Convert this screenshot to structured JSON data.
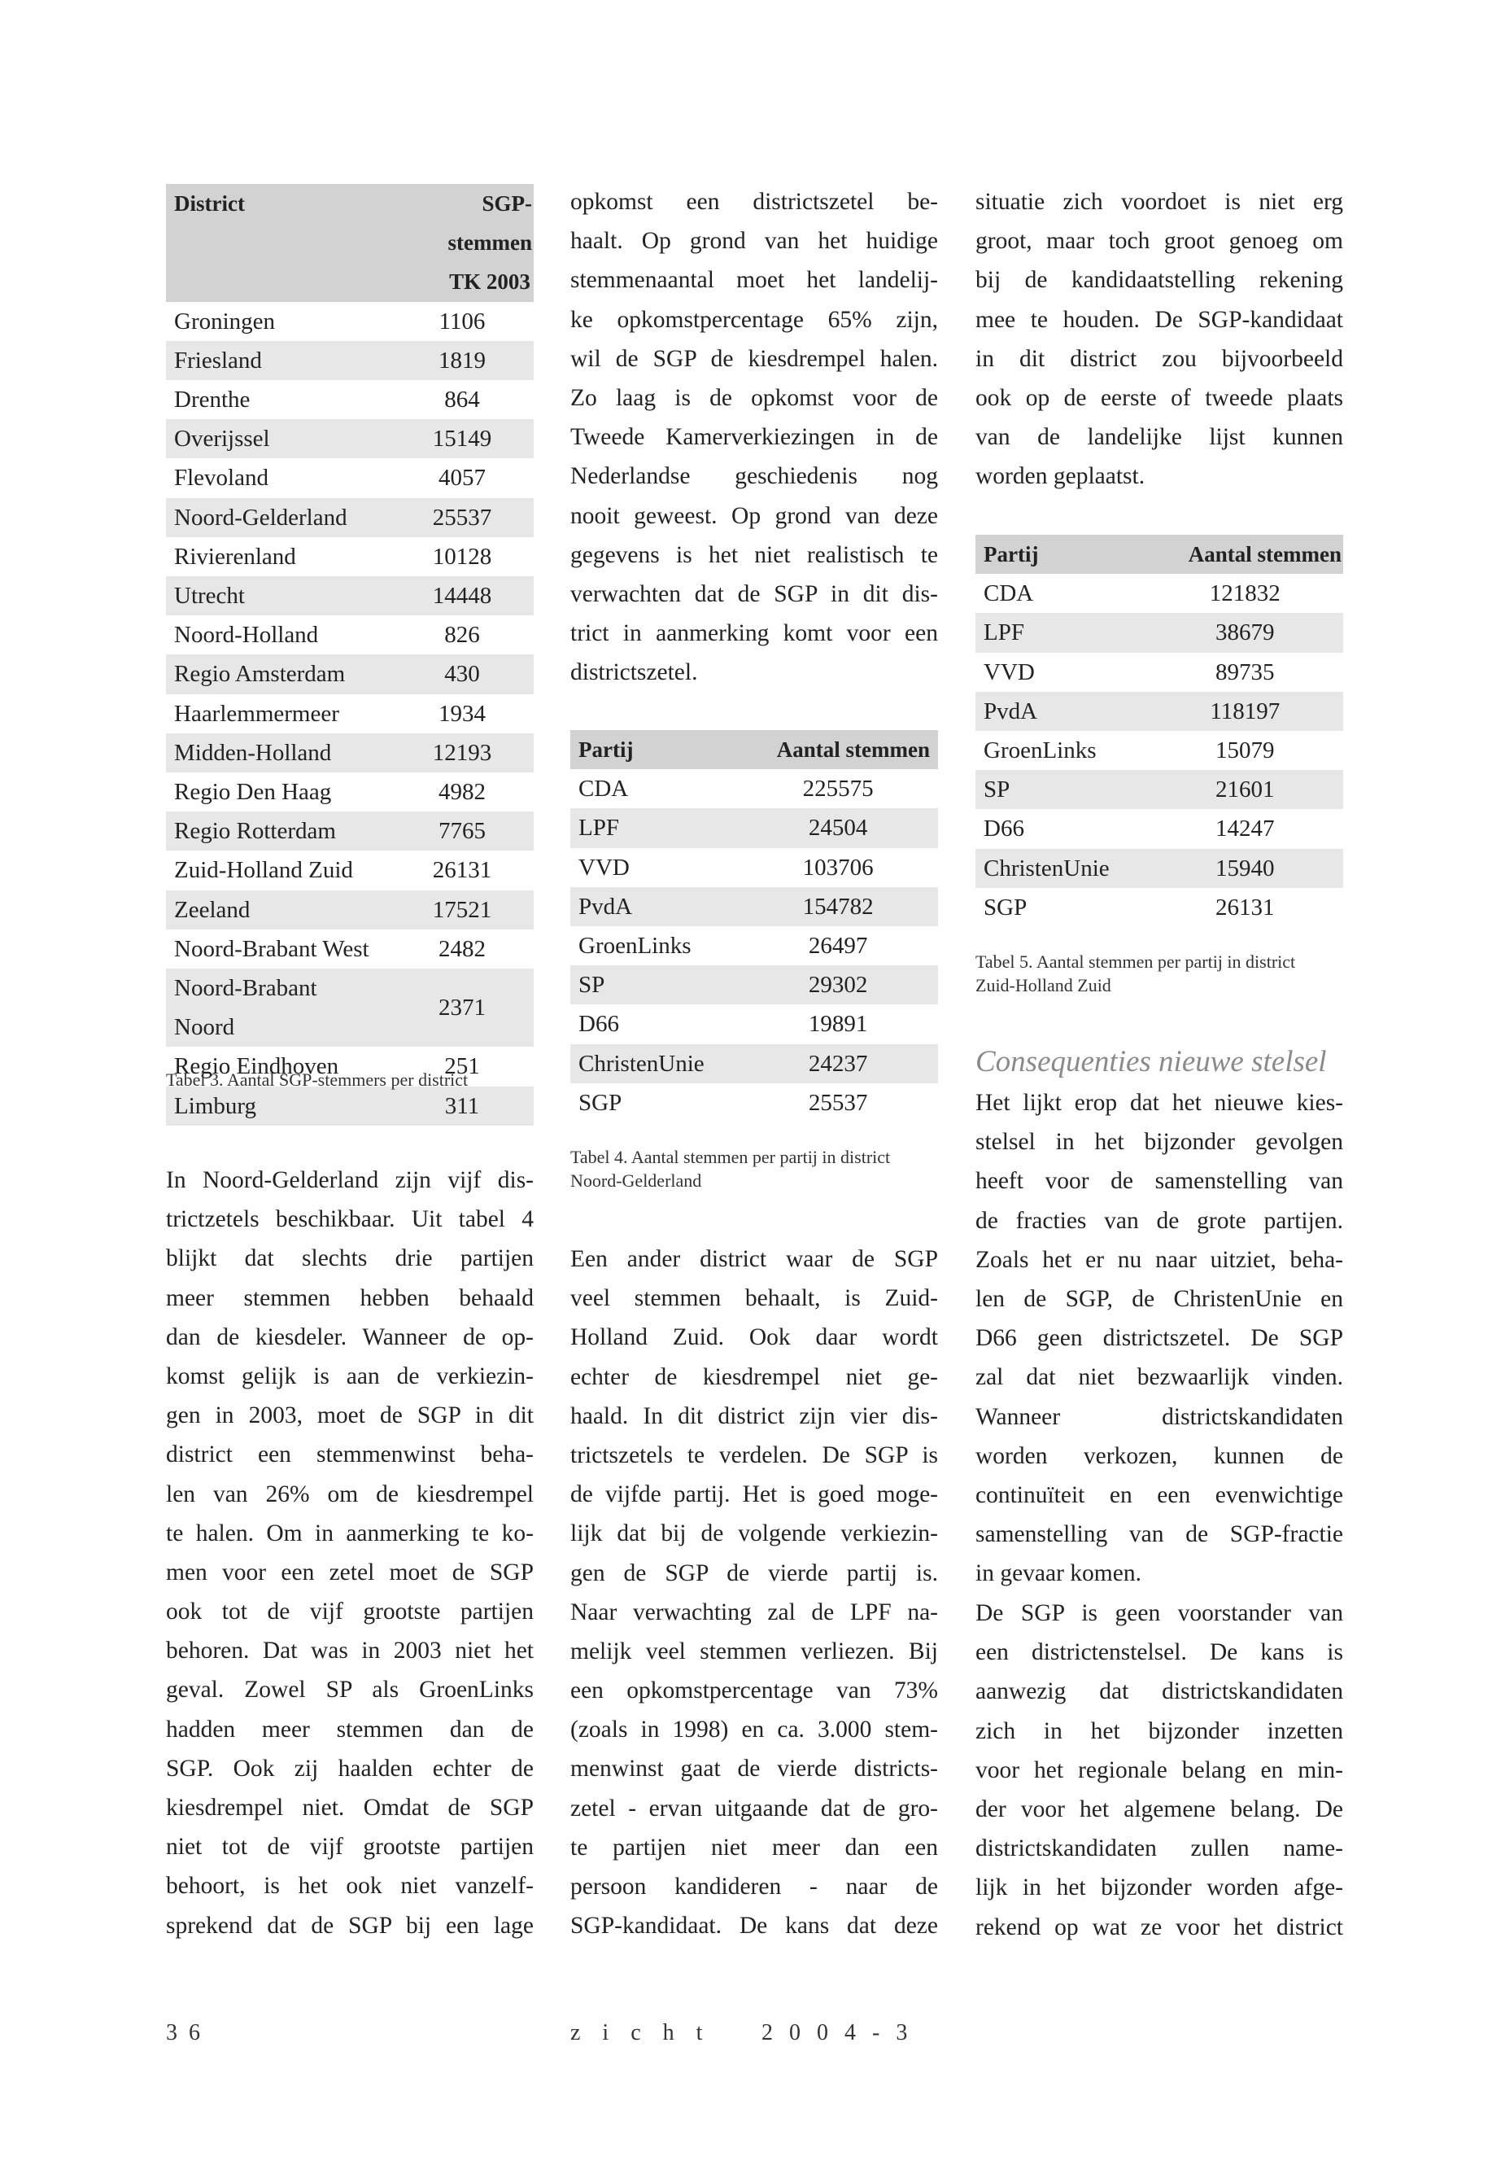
{
  "table3": {
    "headers": {
      "district": "District",
      "votes_line1": "SGP-stemmen",
      "votes_line2": "TK 2003"
    },
    "rows": [
      [
        "Groningen",
        "1106"
      ],
      [
        "Friesland",
        "1819"
      ],
      [
        "Drenthe",
        "864"
      ],
      [
        "Overijssel",
        "15149"
      ],
      [
        "Flevoland",
        "4057"
      ],
      [
        "Noord-Gelderland",
        "25537"
      ],
      [
        "Rivierenland",
        "10128"
      ],
      [
        "Utrecht",
        "14448"
      ],
      [
        "Noord-Holland",
        "826"
      ],
      [
        "Regio Amsterdam",
        "430"
      ],
      [
        "Haarlemmermeer",
        "1934"
      ],
      [
        "Midden-Holland",
        "12193"
      ],
      [
        "Regio Den Haag",
        "4982"
      ],
      [
        "Regio Rotterdam",
        "7765"
      ],
      [
        "Zuid-Holland Zuid",
        "26131"
      ],
      [
        "Zeeland",
        "17521"
      ],
      [
        "Noord-Brabant West",
        "2482"
      ],
      [
        "Noord-Brabant Noord",
        "2371"
      ],
      [
        "Regio Eindhoven",
        "251"
      ],
      [
        "Limburg",
        "311"
      ]
    ],
    "caption": "Tabel 3. Aantal SGP-stemmers per district"
  },
  "table4": {
    "headers": {
      "party": "Partij",
      "votes": "Aantal stemmen"
    },
    "rows": [
      [
        "CDA",
        "225575"
      ],
      [
        "LPF",
        "24504"
      ],
      [
        "VVD",
        "103706"
      ],
      [
        "PvdA",
        "154782"
      ],
      [
        "GroenLinks",
        "26497"
      ],
      [
        "SP",
        "29302"
      ],
      [
        "D66",
        "19891"
      ],
      [
        "ChristenUnie",
        "24237"
      ],
      [
        "SGP",
        "25537"
      ]
    ],
    "caption": [
      "Tabel 4. Aantal stemmen per partij in district",
      "Noord-Gelderland"
    ]
  },
  "table5": {
    "headers": {
      "party": "Partij",
      "votes": "Aantal stemmen"
    },
    "rows": [
      [
        "CDA",
        "121832"
      ],
      [
        "LPF",
        "38679"
      ],
      [
        "VVD",
        "89735"
      ],
      [
        "PvdA",
        "118197"
      ],
      [
        "GroenLinks",
        "15079"
      ],
      [
        "SP",
        "21601"
      ],
      [
        "D66",
        "14247"
      ],
      [
        "ChristenUnie",
        "15940"
      ],
      [
        "SGP",
        "26131"
      ]
    ],
    "caption": [
      "Tabel 5. Aantal stemmen per partij in district",
      "Zuid-Holland Zuid"
    ]
  },
  "col1_para": [
    "In Noord-Gelderland zijn vijf dis-",
    "trictzetels beschikbaar. Uit tabel 4",
    "blijkt dat slechts drie partijen",
    "meer stemmen hebben behaald",
    "dan de kiesdeler. Wanneer de op-",
    "komst gelijk is aan de verkiezin-",
    "gen in 2003, moet de SGP in dit",
    "district een stemmenwinst beha-",
    "len van 26% om de kiesdrempel",
    "te halen. Om in aanmerking te ko-",
    "men voor een zetel moet de SGP",
    "ook tot de vijf grootste partijen",
    "behoren. Dat was in 2003 niet het",
    "geval. Zowel SP als GroenLinks",
    "hadden meer stemmen dan de",
    "SGP. Ook zij haalden echter de",
    "kiesdrempel niet. Omdat de SGP",
    "niet tot de vijf grootste partijen",
    "behoort, is het ook niet vanzelf-",
    "sprekend dat de SGP bij een lage"
  ],
  "col2_para1": [
    "opkomst een districtszetel be-",
    "haalt. Op grond van het huidige",
    "stemmenaantal moet het landelij-",
    "ke opkomstpercentage 65% zijn,",
    "wil de SGP de kiesdrempel halen.",
    "Zo laag is de opkomst voor de",
    "Tweede Kamerverkiezingen in de",
    "Nederlandse geschiedenis nog",
    "nooit geweest. Op grond van deze",
    "gegevens is het niet realistisch te",
    "verwachten dat de SGP in dit dis-",
    "trict in aanmerking komt voor een",
    "districtszetel."
  ],
  "col2_para2": [
    "Een ander district waar de SGP",
    "veel stemmen behaalt, is Zuid-",
    "Holland Zuid. Ook daar wordt",
    "echter de kiesdrempel niet ge-",
    "haald. In dit district zijn vier dis-",
    "trictszetels te verdelen. De SGP is",
    "de vijfde partij. Het is goed moge-",
    "lijk dat bij de volgende verkiezin-",
    "gen de SGP de vierde partij is.",
    "Naar verwachting zal de LPF na-",
    "melijk veel stemmen verliezen. Bij",
    "een opkomstpercentage van 73%",
    "(zoals in 1998) en ca. 3.000 stem-",
    "menwinst gaat de vierde districts-",
    "zetel - ervan uitgaande dat de gro-",
    "te partijen niet meer dan een",
    "persoon kandideren - naar de",
    "SGP-kandidaat. De kans dat deze"
  ],
  "col3_para1": [
    "situatie zich voordoet is niet erg",
    "groot, maar toch groot genoeg om",
    "bij de kandidaatstelling rekening",
    "mee te houden. De SGP-kandidaat",
    "in dit district zou bijvoorbeeld",
    "ook op de eerste of tweede plaats",
    "van de landelijke lijst kunnen",
    "worden geplaatst."
  ],
  "section_heading": "Consequenties nieuwe stelsel",
  "col3_para2": [
    "Het lijkt erop dat het nieuwe kies-",
    "stelsel in het bijzonder gevolgen",
    "heeft voor de samenstelling van",
    "de fracties van de grote partijen.",
    "Zoals het er nu naar uitziet, beha-",
    "len de SGP, de ChristenUnie en",
    "D66 geen districtszetel. De SGP",
    "zal dat niet bezwaarlijk vinden.",
    "Wanneer districtskandidaten",
    "worden verkozen, kunnen de",
    "continuïteit en een evenwichtige",
    "samenstelling van de SGP-fractie",
    "in gevaar komen."
  ],
  "col3_para3": [
    "De SGP is geen voorstander van",
    "een districtenstelsel. De kans is",
    "aanwezig dat districtskandidaten",
    "zich in het bijzonder inzetten",
    "voor het regionale belang en min-",
    "der voor het algemene belang. De",
    "districtskandidaten zullen name-",
    "lijk in het bijzonder worden afge-",
    "rekend op wat ze voor het district"
  ],
  "footer": {
    "page_number": "36",
    "magazine": "zicht",
    "issue": "2004-3"
  }
}
